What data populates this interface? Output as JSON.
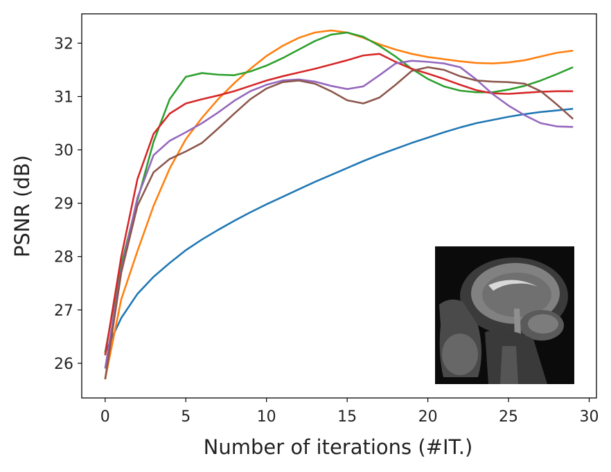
{
  "chart_data": {
    "type": "line",
    "xlabel": "Number of iterations (#IT.)",
    "ylabel": "PSNR (dB)",
    "xlim": [
      -1.45,
      30.45
    ],
    "ylim": [
      25.35,
      32.55
    ],
    "xticks": [
      0,
      5,
      10,
      15,
      20,
      25,
      30
    ],
    "yticks": [
      26,
      27,
      28,
      29,
      30,
      31,
      32
    ],
    "grid": false,
    "legend": "none",
    "inset": "sagittal brain MRI image (grayscale), bottom-right of plot",
    "x": [
      0,
      1,
      2,
      3,
      4,
      5,
      6,
      7,
      8,
      9,
      10,
      11,
      12,
      13,
      14,
      15,
      16,
      17,
      18,
      19,
      20,
      21,
      22,
      23,
      24,
      25,
      26,
      27,
      28,
      29
    ],
    "series": [
      {
        "color": "#1f77b4",
        "values": [
          26.2,
          26.85,
          27.3,
          27.62,
          27.88,
          28.12,
          28.32,
          28.5,
          28.67,
          28.83,
          28.98,
          29.12,
          29.26,
          29.4,
          29.53,
          29.66,
          29.79,
          29.91,
          30.02,
          30.13,
          30.23,
          30.33,
          30.42,
          30.5,
          30.56,
          30.62,
          30.67,
          30.71,
          30.74,
          30.77
        ]
      },
      {
        "color": "#ff7f0e",
        "values": [
          25.7,
          27.2,
          28.1,
          28.95,
          29.65,
          30.2,
          30.6,
          30.95,
          31.25,
          31.52,
          31.76,
          31.95,
          32.1,
          32.2,
          32.24,
          32.2,
          32.1,
          31.98,
          31.88,
          31.8,
          31.74,
          31.7,
          31.66,
          31.63,
          31.62,
          31.64,
          31.68,
          31.75,
          31.82,
          31.86
        ]
      },
      {
        "color": "#2ca02c",
        "values": [
          26.2,
          27.85,
          29.05,
          30.15,
          30.95,
          31.37,
          31.44,
          31.41,
          31.4,
          31.47,
          31.58,
          31.72,
          31.88,
          32.04,
          32.16,
          32.2,
          32.12,
          31.95,
          31.75,
          31.52,
          31.33,
          31.19,
          31.11,
          31.08,
          31.08,
          31.13,
          31.2,
          31.3,
          31.42,
          31.55
        ]
      },
      {
        "color": "#d62728",
        "values": [
          26.15,
          28.0,
          29.45,
          30.3,
          30.68,
          30.87,
          30.95,
          31.02,
          31.1,
          31.2,
          31.3,
          31.38,
          31.45,
          31.52,
          31.6,
          31.68,
          31.77,
          31.8,
          31.65,
          31.52,
          31.43,
          31.33,
          31.22,
          31.12,
          31.06,
          31.05,
          31.07,
          31.09,
          31.1,
          31.1
        ]
      },
      {
        "color": "#9467bd",
        "values": [
          25.9,
          27.75,
          29.1,
          29.9,
          30.17,
          30.33,
          30.5,
          30.7,
          30.92,
          31.1,
          31.22,
          31.3,
          31.32,
          31.28,
          31.2,
          31.14,
          31.19,
          31.4,
          31.62,
          31.67,
          31.65,
          31.62,
          31.55,
          31.32,
          31.05,
          30.83,
          30.65,
          30.5,
          30.44,
          30.43
        ]
      },
      {
        "color": "#8c564b",
        "values": [
          25.7,
          27.7,
          28.95,
          29.58,
          29.83,
          29.97,
          30.13,
          30.4,
          30.68,
          30.95,
          31.15,
          31.27,
          31.3,
          31.24,
          31.1,
          30.93,
          30.87,
          30.98,
          31.22,
          31.48,
          31.55,
          31.5,
          31.38,
          31.3,
          31.28,
          31.27,
          31.24,
          31.1,
          30.85,
          30.58
        ]
      }
    ]
  }
}
